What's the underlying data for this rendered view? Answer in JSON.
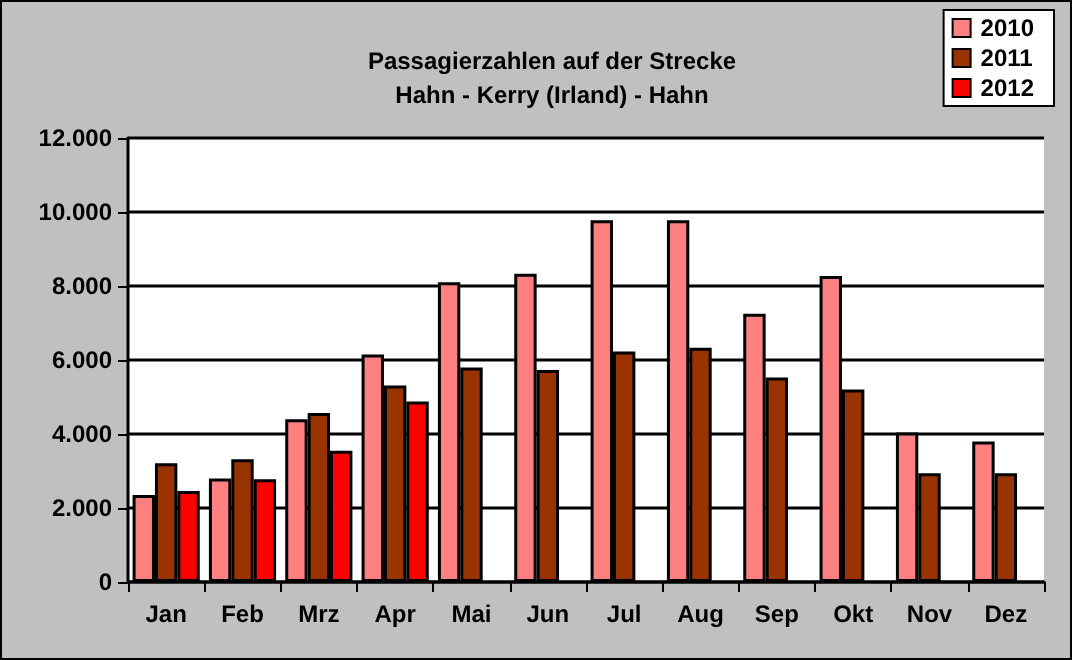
{
  "chart_data": {
    "type": "bar",
    "title": "Passagierzahlen auf der Strecke\nHahn - Kerry (Irland) - Hahn",
    "categories": [
      "Jan",
      "Feb",
      "Mrz",
      "Apr",
      "Mai",
      "Jun",
      "Jul",
      "Aug",
      "Sep",
      "Okt",
      "Nov",
      "Dez"
    ],
    "series": [
      {
        "name": "2010",
        "color": "#ff8080",
        "values": [
          2350,
          2800,
          4400,
          6150,
          8100,
          8330,
          9780,
          9780,
          7250,
          8270,
          4040,
          3800
        ]
      },
      {
        "name": "2011",
        "color": "#993300",
        "values": [
          3210,
          3320,
          4570,
          5310,
          5800,
          5730,
          6230,
          6330,
          5530,
          5200,
          2940,
          2940
        ]
      },
      {
        "name": "2012",
        "color": "#ff0000",
        "values": [
          2460,
          2780,
          3550,
          4880,
          null,
          null,
          null,
          null,
          null,
          null,
          null,
          null
        ]
      }
    ],
    "ylim": [
      0,
      12000
    ],
    "yticks": [
      {
        "value": 0,
        "label": "0"
      },
      {
        "value": 2000,
        "label": "2.000"
      },
      {
        "value": 4000,
        "label": "4.000"
      },
      {
        "value": 6000,
        "label": "6.000"
      },
      {
        "value": 8000,
        "label": "8.000"
      },
      {
        "value": 10000,
        "label": "10.000"
      },
      {
        "value": 12000,
        "label": "12.000"
      }
    ],
    "grid": "y",
    "legend": "top right"
  }
}
